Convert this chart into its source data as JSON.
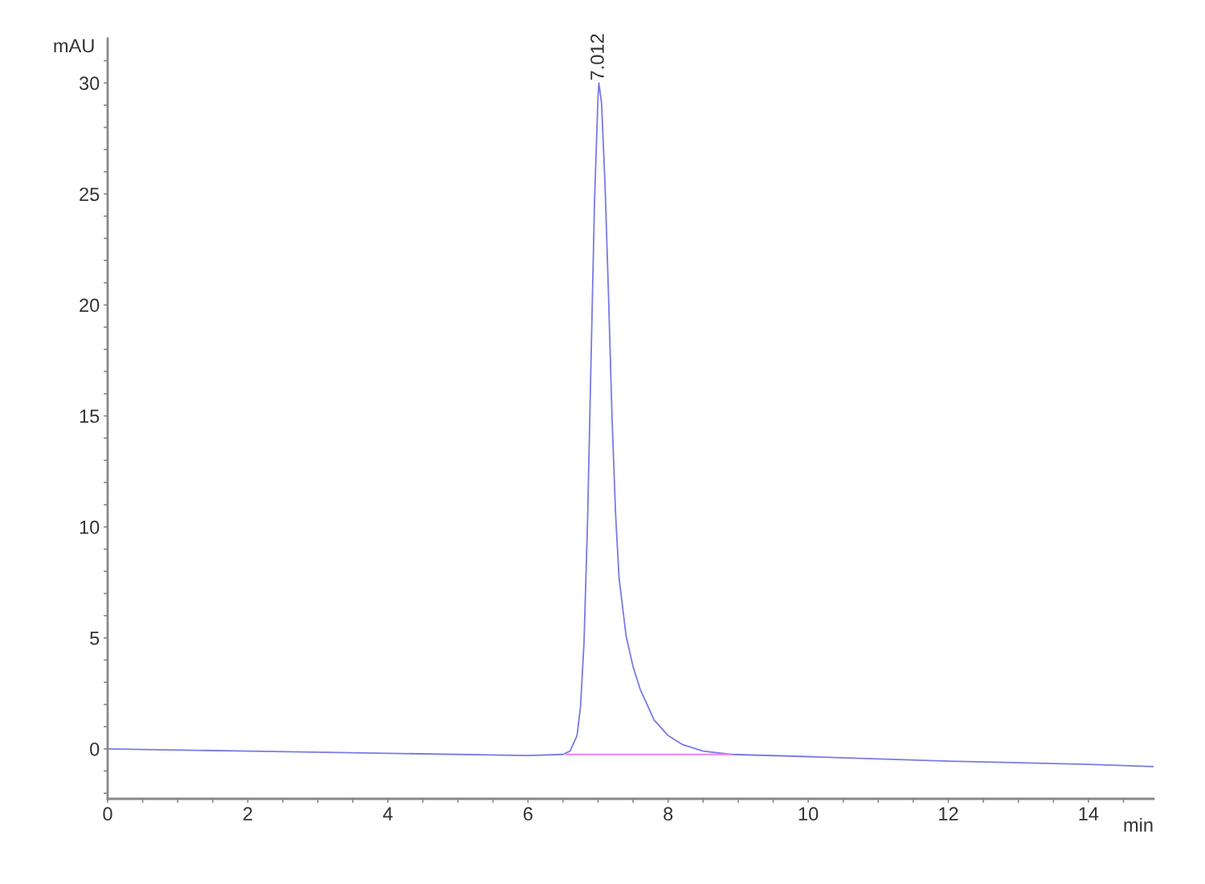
{
  "chart_data": {
    "type": "line",
    "xlabel": "min",
    "ylabel": "mAU",
    "series": [
      {
        "color": "#7a7ae6",
        "x": [
          0,
          2,
          4,
          6,
          6.5,
          6.6,
          6.7,
          6.75,
          6.8,
          6.85,
          6.9,
          6.95,
          7.0,
          7.012,
          7.05,
          7.1,
          7.15,
          7.2,
          7.25,
          7.3,
          7.4,
          7.5,
          7.6,
          7.8,
          8.0,
          8.2,
          8.5,
          8.9,
          10,
          12,
          14,
          14.93
        ],
        "values": [
          0,
          -0.1,
          -0.2,
          -0.3,
          -0.25,
          -0.1,
          0.6,
          1.9,
          4.8,
          10.2,
          17.5,
          24.7,
          29.4,
          30.0,
          29.1,
          25.4,
          20.4,
          14.9,
          10.6,
          7.7,
          5.1,
          3.7,
          2.7,
          1.3,
          0.6,
          0.2,
          -0.1,
          -0.25,
          -0.35,
          -0.55,
          -0.7,
          -0.8
        ]
      },
      {
        "color": "#f080f0",
        "x": [
          6.55,
          8.9
        ],
        "values": [
          -0.25,
          -0.25
        ]
      }
    ],
    "annotations": [
      {
        "text": "7.012",
        "x": 7.012,
        "y": 30.0
      }
    ],
    "xlim": [
      0,
      14.93
    ],
    "ylim": [
      -2.25,
      32
    ],
    "xticks": [
      0,
      {
        "value": 0.5,
        "label": null
      },
      {
        "value": 1,
        "label": null
      },
      {
        "value": 1.5,
        "label": null
      },
      2,
      {
        "value": 2.5,
        "label": null
      },
      {
        "value": 3,
        "label": null
      },
      {
        "value": 3.5,
        "label": null
      },
      4,
      {
        "value": 4.5,
        "label": null
      },
      {
        "value": 5,
        "label": null
      },
      {
        "value": 5.5,
        "label": null
      },
      6,
      {
        "value": 6.5,
        "label": null
      },
      {
        "value": 7,
        "label": null
      },
      {
        "value": 7.5,
        "label": null
      },
      8,
      {
        "value": 8.5,
        "label": null
      },
      {
        "value": 9,
        "label": null
      },
      {
        "value": 9.5,
        "label": null
      },
      10,
      {
        "value": 10.5,
        "label": null
      },
      {
        "value": 11,
        "label": null
      },
      {
        "value": 11.5,
        "label": null
      },
      12,
      {
        "value": 12.5,
        "label": null
      },
      {
        "value": 13,
        "label": null
      },
      {
        "value": 13.5,
        "label": null
      },
      14,
      {
        "value": 14.5,
        "label": null
      }
    ],
    "yticks": [
      {
        "value": -2,
        "label": null
      },
      {
        "value": -1,
        "label": null
      },
      0,
      {
        "value": 1,
        "label": null
      },
      {
        "value": 2,
        "label": null
      },
      {
        "value": 3,
        "label": null
      },
      {
        "value": 4,
        "label": null
      },
      5,
      {
        "value": 6,
        "label": null
      },
      {
        "value": 7,
        "label": null
      },
      {
        "value": 8,
        "label": null
      },
      {
        "value": 9,
        "label": null
      },
      10,
      {
        "value": 11,
        "label": null
      },
      {
        "value": 12,
        "label": null
      },
      {
        "value": 13,
        "label": null
      },
      {
        "value": 14,
        "label": null
      },
      15,
      {
        "value": 16,
        "label": null
      },
      {
        "value": 17,
        "label": null
      },
      {
        "value": 18,
        "label": null
      },
      {
        "value": 19,
        "label": null
      },
      20,
      {
        "value": 21,
        "label": null
      },
      {
        "value": 22,
        "label": null
      },
      {
        "value": 23,
        "label": null
      },
      {
        "value": 24,
        "label": null
      },
      25,
      {
        "value": 26,
        "label": null
      },
      {
        "value": 27,
        "label": null
      },
      {
        "value": 28,
        "label": null
      },
      {
        "value": 29,
        "label": null
      },
      30,
      {
        "value": 31,
        "label": null
      }
    ],
    "grid": false,
    "legend": false,
    "marker": "none",
    "line_style": "solid"
  }
}
